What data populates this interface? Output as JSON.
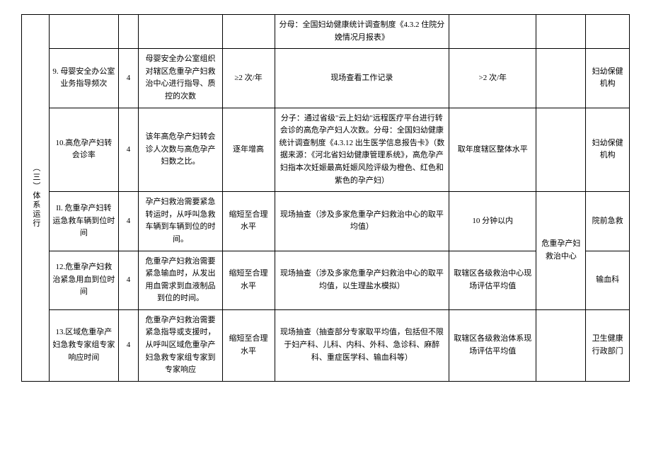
{
  "table": {
    "section_label": "（三）体系运行",
    "rows": [
      {
        "indicator": "",
        "weight": "",
        "description": "",
        "target": "",
        "method": "分母：全国妇幼健康统计调查制度《4.3.2 住院分娩情况月报表》",
        "standard": "",
        "unit1": "",
        "unit2": ""
      },
      {
        "indicator": "9. 母婴安全办公室业务指导频次",
        "weight": "4",
        "description": "母婴安全办公室组织对辖区危重孕产妇救治中心进行指导、质控的次数",
        "target": "≥2 次/年",
        "method": "现场查看工作记录",
        "standard": ">2 次/年",
        "unit1": "",
        "unit2": "妇幼保健机构"
      },
      {
        "indicator": "10.高危孕产妇转会诊率",
        "weight": "4",
        "description": "该年高危孕产妇转会诊人次数与高危孕产妇数之比。",
        "target": "逐年增高",
        "method": "分子：通过省级\"云上妇幼\"远程医疗平台进行转会诊的高危孕产妇人次数。分母：全国妇幼健康统计调查制度《4.3.12 出生医学信息报告卡》（数据来源：《河北省妇幼健康管理系统》，高危孕产妇指本次妊娠最高妊娠风险评级为橙色、红色和紫色的孕产妇）",
        "standard": "取年度辖区整体水平",
        "unit1": "",
        "unit2": "妇幼保健机构"
      },
      {
        "indicator": "Il. 危重孕产妇转运急救车辆到位时间",
        "weight": "4",
        "description": "孕产妇救治需要紧急转运时，从呼叫急救车辆到车辆到位的时间。",
        "target": "缩短至合理水平",
        "method": "现场抽查（涉及多家危重孕产妇救治中心的取平均值）",
        "standard": "10 分钟以内",
        "unit1": "危重孕产妇救治中心",
        "unit2": "院前急救"
      },
      {
        "indicator": "12.危重孕产妇救治紧急用血到位时间",
        "weight": "4",
        "description": "危重孕产妇救治需要紧急输血时，从发出用血需求到血液制品到位的时间。",
        "target": "缩短至合理水平",
        "method": "现场抽查（涉及多家危重孕产妇救治中心的取平均值，以生理盐水模拟）",
        "standard": "取辖区各级救治中心现场评估平均值",
        "unit1": "",
        "unit2": "输血科"
      },
      {
        "indicator": "13.区域危重孕产妇急救专家组专家响应时间",
        "weight": "4",
        "description": "危重孕产妇救治需要紧急指导或支援时，从呼叫区域危重孕产妇急救专家组专家到专家响应",
        "target": "缩短至合理水平",
        "method": "现场抽查（抽查部分专家取平均值，包括但不限于妇产科、儿科、内科、外科、急诊科、麻醉科、重症医学科、输血科等）",
        "standard": "取辖区各级救治体系现场评估平均值",
        "unit1": "",
        "unit2": "卫生健康行政部门"
      }
    ]
  },
  "styles": {
    "font_size": 11,
    "border_color": "#000000",
    "background_color": "#ffffff",
    "text_color": "#000000"
  }
}
